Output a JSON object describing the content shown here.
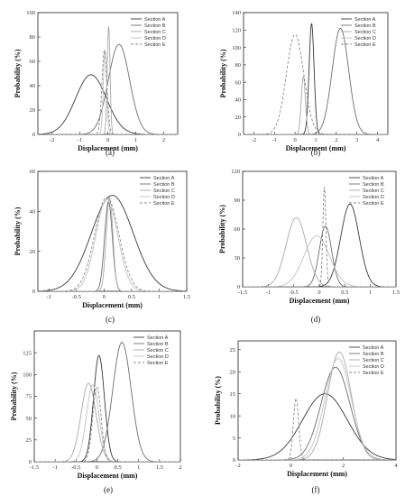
{
  "style": {
    "series_colors": [
      "#3a3a3a",
      "#6e6e6e",
      "#a9a9a9",
      "#c2c2c2",
      "#8a8a8a"
    ],
    "axis_color": "#222222"
  },
  "chart_data": [
    {
      "type": "line",
      "panel_label": "(a)",
      "xlabel": "Displacement (mm)",
      "ylabel": "Probability (%)",
      "xlim": [
        -2.5,
        2.5
      ],
      "ylim": [
        0,
        100
      ],
      "xticks": [
        -2,
        -1,
        0,
        1,
        2
      ],
      "yticks": [
        0,
        20,
        40,
        60,
        80,
        100
      ],
      "legend_position": "top-right",
      "series": [
        {
          "name": "Section A",
          "mean": -0.6,
          "sd": 0.55,
          "peak": 49,
          "dashed": false
        },
        {
          "name": "Section B",
          "mean": 0.4,
          "sd": 0.38,
          "peak": 74,
          "dashed": false
        },
        {
          "name": "Section C",
          "mean": 0.03,
          "sd": 0.05,
          "peak": 90,
          "dashed": false
        },
        {
          "name": "Section D",
          "mean": -0.1,
          "sd": 0.06,
          "peak": 70,
          "dashed": false
        },
        {
          "name": "Section E",
          "mean": -0.12,
          "sd": 0.09,
          "peak": 69,
          "dashed": true
        }
      ]
    },
    {
      "type": "line",
      "panel_label": "(b)",
      "xlabel": "Displacement (mm)",
      "ylabel": "Probability (%)",
      "xlim": [
        -2.5,
        4.5
      ],
      "ylim": [
        0,
        140
      ],
      "xticks": [
        -2,
        -1,
        0,
        1,
        2,
        3,
        4
      ],
      "yticks": [
        0,
        20,
        40,
        60,
        80,
        100,
        120,
        140
      ],
      "legend_position": "top-right",
      "series": [
        {
          "name": "Section A",
          "mean": 0.8,
          "sd": 0.12,
          "peak": 128,
          "dashed": false
        },
        {
          "name": "Section B",
          "mean": 2.2,
          "sd": 0.4,
          "peak": 122,
          "dashed": false
        },
        {
          "name": "Section C",
          "mean": 0.4,
          "sd": 0.1,
          "peak": 67,
          "dashed": false
        },
        {
          "name": "Section D",
          "mean": 0.4,
          "sd": 0.07,
          "peak": 0,
          "dashed": false
        },
        {
          "name": "Section E",
          "mean": 0.0,
          "sd": 0.42,
          "peak": 115,
          "dashed": true
        }
      ]
    },
    {
      "type": "line",
      "panel_label": "(c)",
      "xlabel": "Displacement (mm)",
      "ylabel": "Probability (%)",
      "xlim": [
        -1.2,
        1.5
      ],
      "ylim": [
        0,
        60
      ],
      "xticks": [
        -1.0,
        -0.5,
        0.0,
        0.5,
        1.0,
        1.5
      ],
      "yticks": [
        0,
        20,
        40,
        60
      ],
      "legend_position": "top-right",
      "series": [
        {
          "name": "Section A",
          "mean": 0.15,
          "sd": 0.38,
          "peak": 48,
          "dashed": false
        },
        {
          "name": "Section B",
          "mean": 0.08,
          "sd": 0.07,
          "peak": 45,
          "dashed": false
        },
        {
          "name": "Section C",
          "mean": 0.1,
          "sd": 0.06,
          "peak": 47,
          "dashed": false
        },
        {
          "name": "Section D",
          "mean": 0.05,
          "sd": 0.2,
          "peak": 46,
          "dashed": false
        },
        {
          "name": "Section E",
          "mean": 0.05,
          "sd": 0.22,
          "peak": 47,
          "dashed": true
        }
      ]
    },
    {
      "type": "line",
      "panel_label": "(d)",
      "xlabel": "Displacement (mm)",
      "ylabel": "Probability (%)",
      "xlim": [
        -1.5,
        1.5
      ],
      "ylim": [
        0,
        120
      ],
      "xticks": [
        -1.5,
        -1.0,
        -0.5,
        0.0,
        0.5,
        1.0,
        1.5
      ],
      "yticks": [
        0,
        30,
        60,
        90,
        120
      ],
      "legend_position": "top-right",
      "series": [
        {
          "name": "Section A",
          "mean": 0.6,
          "sd": 0.18,
          "peak": 86,
          "dashed": false
        },
        {
          "name": "Section B",
          "mean": 0.12,
          "sd": 0.12,
          "peak": 63,
          "dashed": false
        },
        {
          "name": "Section C",
          "mean": -0.45,
          "sd": 0.2,
          "peak": 72,
          "dashed": false
        },
        {
          "name": "Section D",
          "mean": -0.05,
          "sd": 0.25,
          "peak": 53,
          "dashed": false
        },
        {
          "name": "Section E",
          "mean": 0.1,
          "sd": 0.03,
          "peak": 105,
          "dashed": true
        }
      ]
    },
    {
      "type": "line",
      "panel_label": "(e)",
      "xlabel": "Displacement (mm)",
      "ylabel": "Probability (%)",
      "xlim": [
        -1.5,
        2.0
      ],
      "ylim": [
        0,
        150
      ],
      "xticks": [
        -1.5,
        -1.0,
        -0.5,
        0.0,
        0.5,
        1.0,
        1.5,
        2.0
      ],
      "yticks": [
        0,
        25,
        50,
        75,
        100,
        125
      ],
      "legend_position": "top-right",
      "series": [
        {
          "name": "Section A",
          "mean": 0.05,
          "sd": 0.13,
          "peak": 122,
          "dashed": false
        },
        {
          "name": "Section B",
          "mean": 0.6,
          "sd": 0.22,
          "peak": 137,
          "dashed": false
        },
        {
          "name": "Section C",
          "mean": -0.2,
          "sd": 0.18,
          "peak": 90,
          "dashed": false
        },
        {
          "name": "Section D",
          "mean": -0.1,
          "sd": 0.15,
          "peak": 88,
          "dashed": false
        },
        {
          "name": "Section E",
          "mean": 0.0,
          "sd": 0.1,
          "peak": 86,
          "dashed": true
        }
      ]
    },
    {
      "type": "line",
      "panel_label": "(f)",
      "xlabel": "Displacement (mm)",
      "ylabel": "Probability (%)",
      "xlim": [
        -2,
        4
      ],
      "ylim": [
        0,
        27
      ],
      "xticks": [
        -2,
        0,
        2,
        4
      ],
      "yticks": [
        0,
        5,
        10,
        15,
        20,
        25
      ],
      "legend_position": "top-right",
      "series": [
        {
          "name": "Section A",
          "mean": 1.3,
          "sd": 0.85,
          "peak": 15,
          "dashed": false
        },
        {
          "name": "Section B",
          "mean": 1.7,
          "sd": 0.55,
          "peak": 21,
          "dashed": false
        },
        {
          "name": "Section C",
          "mean": 1.85,
          "sd": 0.45,
          "peak": 24.5,
          "dashed": false
        },
        {
          "name": "Section D",
          "mean": 1.8,
          "sd": 0.5,
          "peak": 23,
          "dashed": false
        },
        {
          "name": "Section E",
          "mean": 0.2,
          "sd": 0.1,
          "peak": 14,
          "dashed": true
        }
      ]
    }
  ]
}
